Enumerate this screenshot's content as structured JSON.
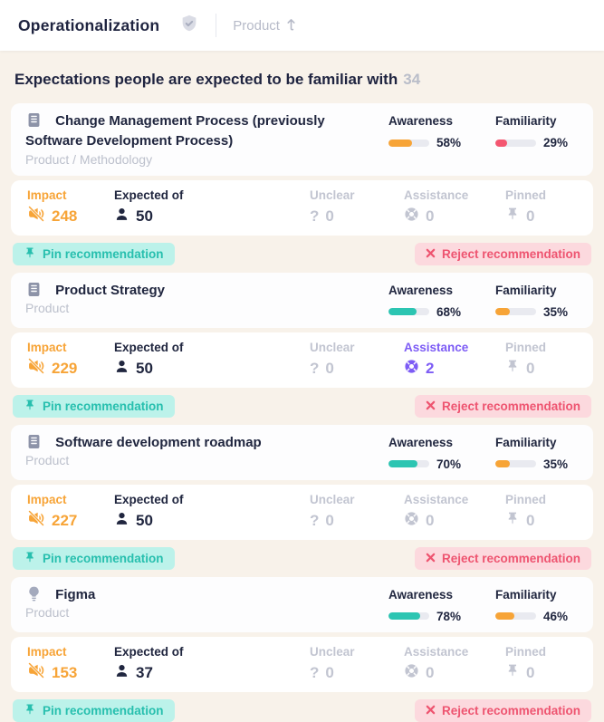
{
  "header": {
    "title": "Operationalization",
    "badge_icon": "shield-check",
    "sort": {
      "label": "Product",
      "direction": "ascending"
    }
  },
  "section": {
    "heading": "Expectations people are expected to be familiar with",
    "count": "34"
  },
  "labels": {
    "awareness": "Awareness",
    "familiarity": "Familiarity",
    "impact": "Impact",
    "expected_of": "Expected of",
    "unclear": "Unclear",
    "assistance": "Assistance",
    "pinned": "Pinned",
    "pin_action": "Pin recommendation",
    "reject_action": "Reject recommendation"
  },
  "colors": {
    "background": "#f8f2ea",
    "card": "#ffffff",
    "text_dark": "#20263f",
    "text_muted": "#c2c5d1",
    "orange": "#f7a437",
    "red": "#f45670",
    "teal": "#2cc5b2",
    "purple": "#7d5cf5",
    "pin_button_bg": "#bcf2ea",
    "reject_button_bg": "#fcd9de",
    "bar_track": "#e9eaf0"
  },
  "cards": [
    {
      "icon": "journal",
      "title": "Change Management Process (previously Software Development Process)",
      "category": "Product / Methodology",
      "awareness": {
        "percent": "58%",
        "value": 58,
        "color": "#f7a437"
      },
      "familiarity": {
        "percent": "29%",
        "value": 29,
        "color": "#f45670"
      },
      "impact": "248",
      "expected_of": "50",
      "unclear": "0",
      "assistance": {
        "value": "0",
        "highlight": false
      },
      "pinned": "0"
    },
    {
      "icon": "journal",
      "title": "Product Strategy",
      "category": "Product",
      "awareness": {
        "percent": "68%",
        "value": 68,
        "color": "#2cc5b2"
      },
      "familiarity": {
        "percent": "35%",
        "value": 35,
        "color": "#f7a437"
      },
      "impact": "229",
      "expected_of": "50",
      "unclear": "0",
      "assistance": {
        "value": "2",
        "highlight": true
      },
      "pinned": "0"
    },
    {
      "icon": "journal",
      "title": "Software development roadmap",
      "category": "Product",
      "awareness": {
        "percent": "70%",
        "value": 70,
        "color": "#2cc5b2"
      },
      "familiarity": {
        "percent": "35%",
        "value": 35,
        "color": "#f7a437"
      },
      "impact": "227",
      "expected_of": "50",
      "unclear": "0",
      "assistance": {
        "value": "0",
        "highlight": false
      },
      "pinned": "0"
    },
    {
      "icon": "lightbulb",
      "title": "Figma",
      "category": "Product",
      "awareness": {
        "percent": "78%",
        "value": 78,
        "color": "#2cc5b2"
      },
      "familiarity": {
        "percent": "46%",
        "value": 46,
        "color": "#f7a437"
      },
      "impact": "153",
      "expected_of": "37",
      "unclear": "0",
      "assistance": {
        "value": "0",
        "highlight": false
      },
      "pinned": "0"
    }
  ]
}
